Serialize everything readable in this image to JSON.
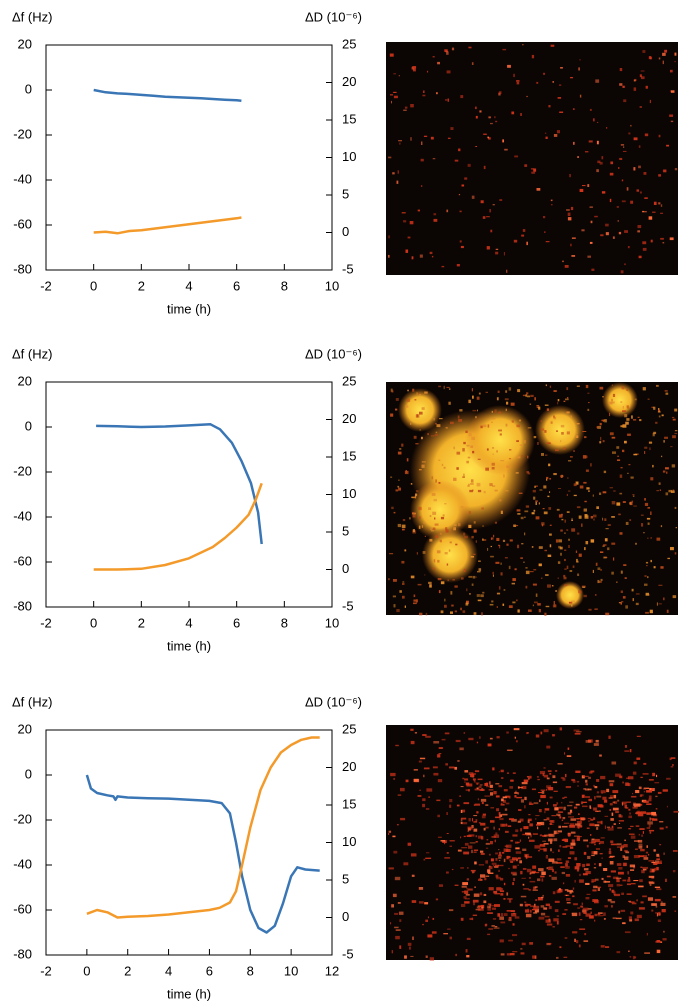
{
  "chart_data": [
    {
      "type": "line",
      "y_label": "Δf (Hz)",
      "y2_label": "ΔD (10⁻⁶)",
      "x_label": "time (h)",
      "xlim": [
        -2,
        10
      ],
      "xticks": [
        -2,
        0,
        2,
        4,
        6,
        8,
        10
      ],
      "ylim": [
        -80,
        20
      ],
      "yticks": [
        -80,
        -60,
        -40,
        -20,
        0,
        20
      ],
      "y2lim": [
        -5,
        25
      ],
      "y2ticks": [
        -5,
        0,
        5,
        10,
        15,
        20,
        25
      ],
      "series": [
        {
          "color": "#3a76b5",
          "x": [
            0,
            0.5,
            1,
            1.5,
            2,
            2.5,
            3,
            3.5,
            4,
            4.5,
            5,
            5.5,
            6,
            6.2
          ],
          "values": [
            0,
            -1,
            -1.5,
            -1.8,
            -2.2,
            -2.6,
            -3,
            -3.2,
            -3.4,
            -3.7,
            -4,
            -4.3,
            -4.6,
            -4.8
          ]
        },
        {
          "color": "#f39a2a",
          "axis": "y2",
          "x": [
            0,
            0.5,
            1,
            1.5,
            2,
            2.5,
            3,
            3.5,
            4,
            4.5,
            5,
            5.5,
            6,
            6.2
          ],
          "values": [
            0,
            0.1,
            -0.1,
            0.2,
            0.3,
            0.5,
            0.7,
            0.9,
            1.1,
            1.3,
            1.5,
            1.7,
            1.9,
            2.0
          ]
        }
      ]
    },
    {
      "type": "line",
      "y_label": "Δf (Hz)",
      "y2_label": "ΔD (10⁻⁶)",
      "x_label": "time (h)",
      "xlim": [
        -2,
        10
      ],
      "xticks": [
        -2,
        0,
        2,
        4,
        6,
        8,
        10
      ],
      "ylim": [
        -80,
        20
      ],
      "yticks": [
        -80,
        -60,
        -40,
        -20,
        0,
        20
      ],
      "y2lim": [
        -5,
        25
      ],
      "y2ticks": [
        -5,
        0,
        5,
        10,
        15,
        20,
        25
      ],
      "series": [
        {
          "color": "#3a76b5",
          "x": [
            0.1,
            1,
            2,
            3,
            4,
            4.5,
            4.9,
            5.3,
            5.8,
            6.2,
            6.6,
            6.9,
            7.05
          ],
          "values": [
            0.5,
            0.3,
            0,
            0.2,
            0.7,
            1,
            1.2,
            -1,
            -7,
            -15,
            -25,
            -38,
            -52
          ]
        },
        {
          "color": "#f39a2a",
          "axis": "y2",
          "x": [
            0,
            1,
            2,
            3,
            4,
            5,
            5.5,
            6,
            6.5,
            6.8,
            7.05
          ],
          "values": [
            0,
            0,
            0.1,
            0.6,
            1.5,
            3,
            4.2,
            5.6,
            7.3,
            9.3,
            11.5
          ]
        }
      ]
    },
    {
      "type": "line",
      "y_label": "Δf (Hz)",
      "y2_label": "ΔD (10⁻⁶)",
      "x_label": "time (h)",
      "xlim": [
        -2,
        12
      ],
      "xticks": [
        -2,
        0,
        2,
        4,
        6,
        8,
        10,
        12
      ],
      "ylim": [
        -80,
        20
      ],
      "yticks": [
        -80,
        -60,
        -40,
        -20,
        0,
        20
      ],
      "y2lim": [
        -5,
        25
      ],
      "y2ticks": [
        -5,
        0,
        5,
        10,
        15,
        20,
        25
      ],
      "series": [
        {
          "color": "#3a76b5",
          "x": [
            0,
            0.2,
            0.5,
            1,
            1.3,
            1.4,
            1.5,
            2,
            3,
            4,
            5,
            6,
            6.6,
            7,
            7.3,
            7.6,
            8,
            8.4,
            8.8,
            9.2,
            9.6,
            10,
            10.3,
            10.7,
            11.4
          ],
          "values": [
            0,
            -6,
            -8,
            -9,
            -9.5,
            -11,
            -9.5,
            -10,
            -10.3,
            -10.5,
            -11,
            -11.5,
            -12.5,
            -17,
            -30,
            -45,
            -60,
            -68,
            -70,
            -67,
            -57,
            -45,
            -41,
            -42,
            -42.5
          ]
        },
        {
          "color": "#f39a2a",
          "axis": "y2",
          "x": [
            0,
            0.5,
            1,
            1.5,
            2,
            3,
            4,
            5,
            6,
            6.5,
            7,
            7.3,
            7.6,
            8,
            8.5,
            9,
            9.5,
            10,
            10.5,
            11,
            11.4
          ],
          "values": [
            0.5,
            1,
            0.7,
            0,
            0.1,
            0.2,
            0.4,
            0.7,
            1,
            1.3,
            2,
            3.5,
            7,
            12,
            17,
            20,
            22,
            23,
            23.7,
            24,
            24
          ]
        }
      ]
    }
  ]
}
